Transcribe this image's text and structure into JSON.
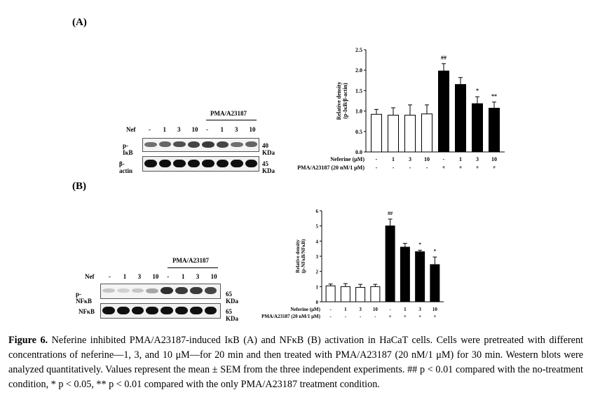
{
  "panel_a": {
    "label": "(A)",
    "western_blot": {
      "group_label": "PMA/A23187",
      "row_label_nef": "Nef",
      "lanes": [
        "-",
        "1",
        "3",
        "10",
        "-",
        "1",
        "3",
        "10"
      ],
      "rows": [
        {
          "name": "p-IκB",
          "size": "40 KDa",
          "intensities": [
            0.55,
            0.6,
            0.7,
            0.75,
            0.8,
            0.75,
            0.55,
            0.6
          ]
        },
        {
          "name": "β-actin",
          "size": "45 KDa",
          "intensities": [
            1,
            1,
            1,
            1,
            1,
            1,
            1,
            1
          ]
        }
      ]
    }
  },
  "panel_b": {
    "label": "(B)",
    "western_blot": {
      "group_label": "PMA/A23187",
      "row_label_nef": "Nef",
      "lanes": [
        "-",
        "1",
        "3",
        "10",
        "-",
        "1",
        "3",
        "10"
      ],
      "rows": [
        {
          "name": "p-NFκB",
          "size": "65 KDa",
          "intensities": [
            0.15,
            0.1,
            0.15,
            0.3,
            0.85,
            0.8,
            0.8,
            0.75
          ]
        },
        {
          "name": "NFκB",
          "size": "65 KDa",
          "intensities": [
            1,
            1,
            1,
            1,
            1,
            1,
            1,
            1
          ]
        }
      ]
    }
  },
  "chart_data": [
    {
      "type": "bar",
      "ylabel_line1": "Relative density",
      "ylabel_line2": "(p-IκB/β-actin)",
      "ylim": [
        0,
        2.5
      ],
      "yticks": [
        "0.0",
        "0.5",
        "1.0",
        "1.5",
        "2.0",
        "2.5"
      ],
      "neferine_label": "Neferine (μM)",
      "pma_label": "PMA/A23187 (20 nM/1 μM)",
      "neferine_row": [
        "-",
        "1",
        "3",
        "10",
        "-",
        "1",
        "3",
        "10"
      ],
      "pma_row": [
        "-",
        "-",
        "-",
        "-",
        "+",
        "+",
        "+",
        "+"
      ],
      "values": [
        0.92,
        0.9,
        0.9,
        0.93,
        1.98,
        1.65,
        1.18,
        1.07
      ],
      "errors": [
        0.12,
        0.18,
        0.25,
        0.22,
        0.18,
        0.17,
        0.17,
        0.15
      ],
      "fills": [
        "white",
        "white",
        "white",
        "white",
        "black",
        "black",
        "black",
        "black"
      ],
      "annotations": [
        "",
        "",
        "",
        "",
        "##",
        "",
        "*",
        "**"
      ]
    },
    {
      "type": "bar",
      "ylabel_line1": "Relative density",
      "ylabel_line2": "(p-NFκB/NFκB)",
      "ylim": [
        0,
        6
      ],
      "yticks": [
        "0",
        "1",
        "2",
        "3",
        "4",
        "5",
        "6"
      ],
      "neferine_label": "Neferine (μM)",
      "pma_label": "PMA/A23187 (20 nM/1 μM)",
      "neferine_row": [
        "-",
        "1",
        "3",
        "10",
        "-",
        "1",
        "3",
        "10"
      ],
      "pma_row": [
        "-",
        "-",
        "-",
        "-",
        "+",
        "+",
        "+",
        "+"
      ],
      "values": [
        1.05,
        1.0,
        0.95,
        1.0,
        5.0,
        3.6,
        3.3,
        2.45
      ],
      "errors": [
        0.12,
        0.2,
        0.2,
        0.15,
        0.45,
        0.25,
        0.1,
        0.5
      ],
      "fills": [
        "white",
        "white",
        "white",
        "white",
        "black",
        "black",
        "black",
        "black"
      ],
      "annotations": [
        "",
        "",
        "",
        "",
        "##",
        "",
        "*",
        "*"
      ]
    }
  ],
  "caption": {
    "figure_label": "Figure 6.",
    "text": " Neferine inhibited PMA/A23187-induced IκB (A) and NFκB (B) activation in HaCaT cells. Cells were pretreated with different concentrations of neferine—1, 3, and 10 μM—for 20 min and then treated with PMA/A23187 (20 nM/1 μM) for 30 min. Western blots were analyzed quantitatively. Values represent the mean ± SEM from the three independent experiments. ## p < 0.01 compared with the no-treatment condition, * p < 0.05, ** p < 0.01 compared with the only PMA/A23187 treatment condition."
  }
}
